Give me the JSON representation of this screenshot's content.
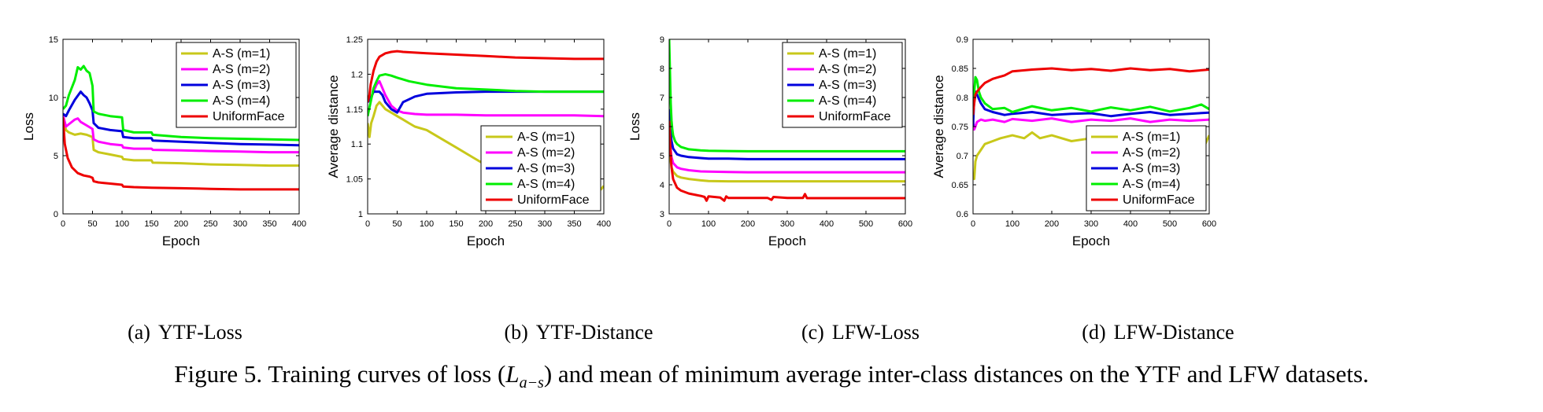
{
  "chart_data": [
    {
      "type": "line",
      "panel": "a",
      "xlabel": "Epoch",
      "ylabel": "Loss",
      "xlim": [
        0,
        400
      ],
      "ylim": [
        0,
        15
      ],
      "xticks": [
        "0",
        "50",
        "100",
        "150",
        "200",
        "250",
        "300",
        "350",
        "400"
      ],
      "yticks": [
        "0",
        "5",
        "10",
        "15"
      ],
      "legend_position": "top-right",
      "series": [
        {
          "name": "A-S (m=1)",
          "color": "#c8c81a",
          "x": [
            0,
            5,
            10,
            20,
            30,
            40,
            50,
            52,
            60,
            80,
            100,
            102,
            120,
            150,
            152,
            200,
            250,
            300,
            350,
            400
          ],
          "y": [
            8.5,
            7.2,
            7.0,
            6.8,
            6.9,
            6.8,
            6.6,
            5.5,
            5.3,
            5.1,
            4.9,
            4.7,
            4.6,
            4.6,
            4.4,
            4.35,
            4.25,
            4.2,
            4.15,
            4.15
          ]
        },
        {
          "name": "A-S (m=2)",
          "color": "#ff00ff",
          "x": [
            0,
            5,
            10,
            20,
            25,
            30,
            40,
            50,
            52,
            60,
            80,
            100,
            102,
            120,
            150,
            152,
            200,
            250,
            300,
            350,
            400
          ],
          "y": [
            8.5,
            7.5,
            7.7,
            8.1,
            8.2,
            7.9,
            7.6,
            7.3,
            6.4,
            6.2,
            6.0,
            5.9,
            5.7,
            5.6,
            5.6,
            5.5,
            5.45,
            5.4,
            5.35,
            5.3,
            5.3
          ]
        },
        {
          "name": "A-S (m=3)",
          "color": "#0000dd",
          "x": [
            0,
            5,
            10,
            20,
            30,
            35,
            40,
            45,
            50,
            52,
            60,
            80,
            100,
            102,
            120,
            150,
            152,
            200,
            250,
            300,
            350,
            400
          ],
          "y": [
            8.6,
            8.4,
            8.9,
            9.8,
            10.5,
            10.2,
            10.0,
            9.5,
            8.9,
            7.8,
            7.4,
            7.2,
            7.1,
            6.6,
            6.5,
            6.5,
            6.3,
            6.2,
            6.1,
            6.0,
            5.95,
            5.9
          ]
        },
        {
          "name": "A-S (m=4)",
          "color": "#00ee00",
          "x": [
            0,
            5,
            10,
            20,
            25,
            30,
            35,
            40,
            45,
            50,
            52,
            60,
            80,
            100,
            102,
            120,
            150,
            152,
            200,
            250,
            300,
            350,
            400
          ],
          "y": [
            9.0,
            9.3,
            10.2,
            11.5,
            12.6,
            12.4,
            12.7,
            12.3,
            12.1,
            11.0,
            8.8,
            8.6,
            8.4,
            8.3,
            7.2,
            7.0,
            7.0,
            6.8,
            6.6,
            6.5,
            6.45,
            6.4,
            6.35
          ]
        },
        {
          "name": "UniformFace",
          "color": "#ee0000",
          "x": [
            0,
            3,
            8,
            15,
            25,
            35,
            45,
            50,
            52,
            60,
            80,
            100,
            102,
            120,
            150,
            200,
            250,
            300,
            350,
            400
          ],
          "y": [
            8.3,
            6.0,
            4.8,
            4.0,
            3.5,
            3.3,
            3.2,
            3.1,
            2.8,
            2.7,
            2.6,
            2.5,
            2.35,
            2.3,
            2.25,
            2.2,
            2.15,
            2.1,
            2.1,
            2.1
          ]
        }
      ]
    },
    {
      "type": "line",
      "panel": "b",
      "xlabel": "Epoch",
      "ylabel": "Average distance",
      "xlim": [
        0,
        400
      ],
      "ylim": [
        1,
        1.25
      ],
      "xticks": [
        "0",
        "50",
        "100",
        "150",
        "200",
        "250",
        "300",
        "350",
        "400"
      ],
      "yticks": [
        "1",
        "1.05",
        "1.1",
        "1.15",
        "1.2",
        "1.25"
      ],
      "legend_position": "bottom-right",
      "series": [
        {
          "name": "A-S (m=1)",
          "color": "#c8c81a",
          "x": [
            0,
            3,
            6,
            10,
            15,
            20,
            25,
            30,
            40,
            50,
            60,
            70,
            80,
            100,
            120,
            150,
            180,
            200,
            250,
            300,
            350,
            380,
            395,
            400
          ],
          "y": [
            1.13,
            1.11,
            1.13,
            1.14,
            1.155,
            1.16,
            1.155,
            1.15,
            1.145,
            1.14,
            1.135,
            1.13,
            1.125,
            1.12,
            1.11,
            1.095,
            1.08,
            1.07,
            1.06,
            1.05,
            1.045,
            1.04,
            1.035,
            1.04
          ]
        },
        {
          "name": "A-S (m=2)",
          "color": "#ff00ff",
          "x": [
            0,
            5,
            10,
            15,
            20,
            25,
            30,
            40,
            50,
            60,
            80,
            100,
            150,
            200,
            250,
            300,
            350,
            400
          ],
          "y": [
            1.16,
            1.165,
            1.175,
            1.185,
            1.19,
            1.18,
            1.17,
            1.155,
            1.148,
            1.145,
            1.143,
            1.142,
            1.142,
            1.141,
            1.141,
            1.141,
            1.141,
            1.14
          ]
        },
        {
          "name": "A-S (m=3)",
          "color": "#0000dd",
          "x": [
            0,
            5,
            10,
            20,
            25,
            30,
            40,
            50,
            60,
            80,
            100,
            150,
            200,
            250,
            300,
            350,
            400
          ],
          "y": [
            1.16,
            1.165,
            1.175,
            1.175,
            1.17,
            1.16,
            1.15,
            1.145,
            1.16,
            1.168,
            1.172,
            1.174,
            1.175,
            1.175,
            1.175,
            1.175,
            1.175
          ]
        },
        {
          "name": "A-S (m=4)",
          "color": "#00ee00",
          "x": [
            0,
            5,
            10,
            15,
            20,
            30,
            40,
            50,
            70,
            100,
            150,
            200,
            250,
            300,
            350,
            400
          ],
          "y": [
            1.14,
            1.16,
            1.18,
            1.19,
            1.198,
            1.2,
            1.198,
            1.195,
            1.19,
            1.185,
            1.18,
            1.178,
            1.176,
            1.175,
            1.175,
            1.175
          ]
        },
        {
          "name": "UniformFace",
          "color": "#ee0000",
          "x": [
            0,
            3,
            5,
            10,
            15,
            20,
            30,
            40,
            50,
            60,
            80,
            100,
            150,
            200,
            250,
            300,
            350,
            400
          ],
          "y": [
            1.16,
            1.17,
            1.185,
            1.205,
            1.218,
            1.225,
            1.23,
            1.232,
            1.233,
            1.232,
            1.231,
            1.23,
            1.228,
            1.226,
            1.224,
            1.223,
            1.222,
            1.222
          ]
        }
      ]
    },
    {
      "type": "line",
      "panel": "c",
      "xlabel": "Epoch",
      "ylabel": "Loss",
      "xlim": [
        0,
        600
      ],
      "ylim": [
        3,
        9
      ],
      "xticks": [
        "0",
        "100",
        "200",
        "300",
        "400",
        "500",
        "600"
      ],
      "yticks": [
        "3",
        "4",
        "5",
        "6",
        "7",
        "8",
        "9"
      ],
      "legend_position": "top-right",
      "series": [
        {
          "name": "A-S (m=1)",
          "color": "#c8c81a",
          "x": [
            0,
            3,
            6,
            10,
            20,
            30,
            50,
            80,
            100,
            150,
            200,
            300,
            400,
            500,
            600
          ],
          "y": [
            5.2,
            4.9,
            4.6,
            4.45,
            4.3,
            4.25,
            4.2,
            4.15,
            4.13,
            4.12,
            4.12,
            4.12,
            4.12,
            4.12,
            4.12
          ]
        },
        {
          "name": "A-S (m=2)",
          "color": "#ff00ff",
          "x": [
            0,
            3,
            6,
            10,
            20,
            30,
            50,
            80,
            100,
            150,
            200,
            300,
            400,
            500,
            600
          ],
          "y": [
            5.8,
            5.3,
            4.95,
            4.75,
            4.6,
            4.55,
            4.5,
            4.46,
            4.45,
            4.44,
            4.43,
            4.43,
            4.43,
            4.43,
            4.43
          ]
        },
        {
          "name": "A-S (m=3)",
          "color": "#0000dd",
          "x": [
            0,
            3,
            6,
            10,
            20,
            30,
            50,
            80,
            100,
            150,
            200,
            300,
            400,
            500,
            600
          ],
          "y": [
            6.6,
            5.9,
            5.5,
            5.25,
            5.05,
            5.0,
            4.95,
            4.92,
            4.9,
            4.9,
            4.88,
            4.88,
            4.88,
            4.88,
            4.88
          ]
        },
        {
          "name": "A-S (m=4)",
          "color": "#00ee00",
          "x": [
            0,
            2,
            4,
            6,
            8,
            10,
            15,
            20,
            30,
            50,
            80,
            100,
            150,
            200,
            300,
            400,
            500,
            600
          ],
          "y": [
            9.0,
            7.9,
            6.8,
            6.2,
            5.9,
            5.7,
            5.5,
            5.4,
            5.3,
            5.22,
            5.18,
            5.17,
            5.16,
            5.15,
            5.15,
            5.15,
            5.15,
            5.15
          ]
        },
        {
          "name": "UniformFace",
          "color": "#ee0000",
          "x": [
            0,
            3,
            6,
            10,
            20,
            30,
            50,
            80,
            90,
            95,
            100,
            130,
            140,
            145,
            150,
            200,
            250,
            260,
            265,
            300,
            340,
            345,
            350,
            400,
            500,
            600
          ],
          "y": [
            6.2,
            5.3,
            4.6,
            4.2,
            3.9,
            3.8,
            3.7,
            3.62,
            3.58,
            3.45,
            3.6,
            3.56,
            3.45,
            3.6,
            3.55,
            3.55,
            3.55,
            3.48,
            3.58,
            3.55,
            3.55,
            3.68,
            3.54,
            3.54,
            3.54,
            3.54
          ]
        }
      ]
    },
    {
      "type": "line",
      "panel": "d",
      "xlabel": "Epoch",
      "ylabel": "Average distance",
      "xlim": [
        0,
        600
      ],
      "ylim": [
        0.6,
        0.9
      ],
      "xticks": [
        "0",
        "100",
        "200",
        "300",
        "400",
        "500",
        "600"
      ],
      "yticks": [
        "0.6",
        "0.65",
        "0.7",
        "0.75",
        "0.8",
        "0.85",
        "0.9"
      ],
      "legend_position": "bottom-right",
      "series": [
        {
          "name": "A-S (m=1)",
          "color": "#c8c81a",
          "x": [
            0,
            3,
            6,
            10,
            20,
            30,
            50,
            70,
            100,
            130,
            150,
            170,
            200,
            250,
            300,
            350,
            400,
            450,
            500,
            550,
            580,
            590,
            600
          ],
          "y": [
            0.67,
            0.66,
            0.69,
            0.7,
            0.71,
            0.72,
            0.725,
            0.73,
            0.735,
            0.73,
            0.74,
            0.73,
            0.735,
            0.725,
            0.73,
            0.72,
            0.73,
            0.735,
            0.725,
            0.73,
            0.735,
            0.72,
            0.735
          ]
        },
        {
          "name": "A-S (m=2)",
          "color": "#ff00ff",
          "x": [
            0,
            3,
            6,
            10,
            20,
            30,
            50,
            80,
            100,
            150,
            200,
            250,
            300,
            350,
            400,
            450,
            500,
            550,
            600
          ],
          "y": [
            0.76,
            0.745,
            0.75,
            0.758,
            0.762,
            0.76,
            0.762,
            0.758,
            0.763,
            0.76,
            0.764,
            0.758,
            0.762,
            0.76,
            0.764,
            0.758,
            0.762,
            0.76,
            0.762
          ]
        },
        {
          "name": "A-S (m=3)",
          "color": "#0000dd",
          "x": [
            0,
            3,
            6,
            10,
            20,
            30,
            50,
            80,
            100,
            150,
            200,
            250,
            300,
            350,
            400,
            450,
            500,
            550,
            600
          ],
          "y": [
            0.75,
            0.8,
            0.81,
            0.805,
            0.79,
            0.78,
            0.775,
            0.77,
            0.772,
            0.775,
            0.77,
            0.772,
            0.773,
            0.768,
            0.772,
            0.775,
            0.77,
            0.772,
            0.774
          ]
        },
        {
          "name": "A-S (m=4)",
          "color": "#00ee00",
          "x": [
            0,
            3,
            6,
            10,
            15,
            20,
            30,
            40,
            50,
            80,
            100,
            150,
            200,
            250,
            300,
            350,
            400,
            450,
            500,
            550,
            580,
            600
          ],
          "y": [
            0.78,
            0.81,
            0.835,
            0.83,
            0.81,
            0.8,
            0.79,
            0.785,
            0.78,
            0.782,
            0.775,
            0.785,
            0.778,
            0.782,
            0.776,
            0.783,
            0.778,
            0.784,
            0.776,
            0.782,
            0.788,
            0.78
          ]
        },
        {
          "name": "UniformFace",
          "color": "#ee0000",
          "x": [
            0,
            3,
            6,
            10,
            20,
            30,
            50,
            80,
            100,
            150,
            200,
            250,
            300,
            350,
            400,
            450,
            500,
            550,
            600
          ],
          "y": [
            0.77,
            0.79,
            0.805,
            0.81,
            0.818,
            0.825,
            0.832,
            0.838,
            0.845,
            0.848,
            0.85,
            0.847,
            0.849,
            0.846,
            0.85,
            0.847,
            0.849,
            0.845,
            0.848
          ]
        }
      ]
    }
  ],
  "captions": {
    "a": {
      "tag": "(a)",
      "text": "YTF-Loss"
    },
    "b": {
      "tag": "(b)",
      "text": "YTF-Distance"
    },
    "c": {
      "tag": "(c)",
      "text": "LFW-Loss"
    },
    "d": {
      "tag": "(d)",
      "text": "LFW-Distance"
    }
  },
  "figure_caption": {
    "prefix": "Figure 5. Training curves of loss (",
    "symbol": "L",
    "subscript": "a−s",
    "suffix": ") and mean of minimum average inter-class distances on the YTF and LFW datasets."
  }
}
